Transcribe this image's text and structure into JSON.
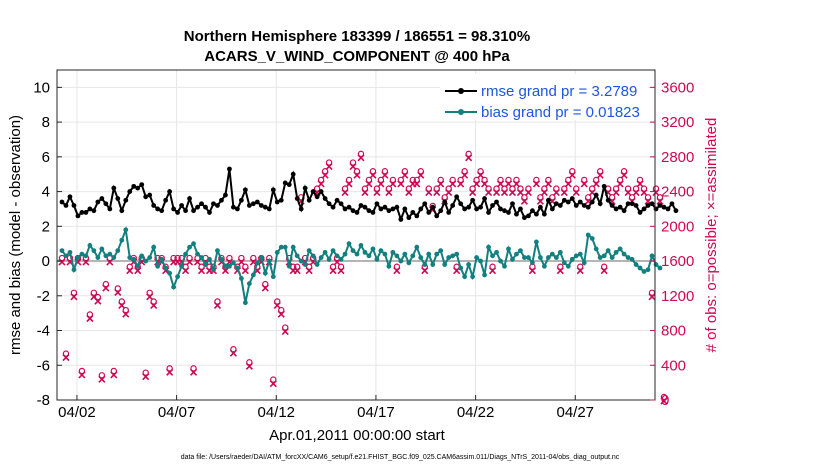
{
  "chart_data": {
    "type": "line",
    "title": "Northern Hemisphere 183399 / 186551 = 98.310%",
    "subtitle": "ACARS_V_WIND_COMPONENT @ 400 hPa",
    "xlabel": "Apr.01,2011 00:00:00 start",
    "ylabel": "rmse and bias (model - observation)",
    "ylabel_right": "# of obs: o=possible; ×=assimilated",
    "footer": "data file: /Users/raeder/DAI/ATM_forcXX/CAM6_setup/f.e21.FHIST_BGC.f09_025.CAM6assim.011/Diags_NTrS_2011-04/obs_diag_output.nc",
    "xlim": [
      1.0,
      31.0
    ],
    "ylim": [
      -8,
      11
    ],
    "ylim_right": [
      0,
      3800
    ],
    "grid": true,
    "legend_position": "top-right",
    "x_ticks": [
      {
        "value": 2,
        "label": "04/02"
      },
      {
        "value": 7,
        "label": "04/07"
      },
      {
        "value": 12,
        "label": "04/12"
      },
      {
        "value": 17,
        "label": "04/17"
      },
      {
        "value": 22,
        "label": "04/22"
      },
      {
        "value": 27,
        "label": "04/27"
      }
    ],
    "y_ticks": [
      -8,
      -6,
      -4,
      -2,
      0,
      2,
      4,
      6,
      8,
      10
    ],
    "y_ticks_right": [
      0,
      400,
      800,
      1200,
      1600,
      2000,
      2400,
      2800,
      3200,
      3600
    ],
    "colors": {
      "rmse": "#000000",
      "bias": "#138080",
      "obs": "#cc0a55",
      "zero": "#b4b4b4"
    },
    "series": [
      {
        "name": "rmse grand pr = 3.2789",
        "axis": "left",
        "color": "#000000",
        "values": [
          3.4,
          3.2,
          3.7,
          3.2,
          2.6,
          2.8,
          2.8,
          3.0,
          2.9,
          3.4,
          3.6,
          3.3,
          3.0,
          4.2,
          3.6,
          2.9,
          3.5,
          4.0,
          4.3,
          4.2,
          4.4,
          3.7,
          3.8,
          3.2,
          3.0,
          2.9,
          3.5,
          4.0,
          3.0,
          2.8,
          3.2,
          2.9,
          3.6,
          2.9,
          3.1,
          3.3,
          3.1,
          2.8,
          3.3,
          3.2,
          3.5,
          3.8,
          5.3,
          3.1,
          3.0,
          3.5,
          4.1,
          3.2,
          3.3,
          3.4,
          3.2,
          3.1,
          3.0,
          4.1,
          3.4,
          3.5,
          4.5,
          4.4,
          5.0,
          3.6,
          3.0,
          4.2,
          3.5,
          4.0,
          3.7,
          4.0,
          3.6,
          3.3,
          3.1,
          3.5,
          3.3,
          3.0,
          3.1,
          2.9,
          2.8,
          3.2,
          3.1,
          2.9,
          2.8,
          3.3,
          3.0,
          3.1,
          2.9,
          3.0,
          3.1,
          2.4,
          3.0,
          2.5,
          2.8,
          2.6,
          3.0,
          3.3,
          2.8,
          3.1,
          2.6,
          2.9,
          3.4,
          2.8,
          3.2,
          3.7,
          3.3,
          3.0,
          3.1,
          3.5,
          3.0,
          3.1,
          3.6,
          2.8,
          3.2,
          3.4,
          3.0,
          2.9,
          2.8,
          3.3,
          2.7,
          3.0,
          2.5,
          2.6,
          2.9,
          2.7,
          3.1,
          2.7,
          3.5,
          3.0,
          3.3,
          3.2,
          3.5,
          3.4,
          3.6,
          3.2,
          3.4,
          3.2,
          3.1,
          3.4,
          3.8,
          3.3,
          4.3,
          3.5,
          3.2,
          3.0,
          3.1,
          2.9,
          3.3,
          3.3,
          3.2,
          2.8,
          3.0,
          3.2,
          3.3,
          3.0,
          3.2,
          3.1,
          3.0,
          3.3,
          2.9
        ]
      },
      {
        "name": "bias grand pr = 0.01823",
        "axis": "left",
        "color": "#138080",
        "values": [
          0.6,
          0.3,
          0.5,
          -0.5,
          0.2,
          0.4,
          0.3,
          0.9,
          0.6,
          0.2,
          0.7,
          0.3,
          0.4,
          0.2,
          0.6,
          1.2,
          1.8,
          0.2,
          0.1,
          -0.3,
          0.3,
          0.0,
          0.2,
          0.8,
          -0.3,
          0.1,
          -0.4,
          -0.7,
          -1.5,
          -0.9,
          -0.3,
          0.4,
          0.8,
          1.0,
          0.4,
          0.2,
          -0.2,
          0.1,
          -0.5,
          0.6,
          0.1,
          -0.3,
          -0.3,
          -0.1,
          -0.4,
          -1.0,
          -2.4,
          -1.3,
          -0.8,
          -0.1,
          0.2,
          -0.7,
          0.0,
          -0.9,
          0.5,
          0.8,
          0.8,
          -0.3,
          0.8,
          0.3,
          0.0,
          -0.2,
          0.6,
          0.3,
          -0.2,
          0.2,
          0.5,
          0.1,
          0.6,
          0.3,
          0.1,
          0.4,
          1.0,
          0.6,
          0.4,
          0.9,
          0.5,
          0.3,
          0.7,
          0.1,
          0.6,
          0.4,
          -0.3,
          0.5,
          0.3,
          0.0,
          0.4,
          -0.1,
          0.3,
          0.8,
          0.2,
          -0.2,
          0.4,
          -0.2,
          0.4,
          0.6,
          -0.2,
          0.2,
          0.3,
          0.4,
          -0.4,
          -0.9,
          -0.2,
          -0.9,
          0.2,
          0.0,
          -0.8,
          0.8,
          0.3,
          0.5,
          0.0,
          -0.3,
          0.7,
          0.1,
          0.4,
          0.6,
          0.2,
          0.2,
          -0.1,
          1.1,
          0.2,
          -0.3,
          0.2,
          0.4,
          0.2,
          0.5,
          -0.1,
          -0.3,
          0.1,
          0.3,
          0.4,
          -0.1,
          1.5,
          1.3,
          0.7,
          0.2,
          0.3,
          0.6,
          0.2,
          0.5,
          0.7,
          0.4,
          0.2,
          0.1,
          -0.2,
          -0.4,
          -0.6,
          -0.5,
          0.3,
          -0.2,
          -0.4
        ]
      },
      {
        "name": "observations possible / assimilated",
        "axis": "right",
        "color": "#cc0a55",
        "values": [
          1600,
          500,
          1600,
          1200,
          1600,
          300,
          1600,
          950,
          1200,
          1150,
          250,
          1300,
          1600,
          300,
          1250,
          1100,
          1000,
          1500,
          1600,
          1500,
          1600,
          280,
          1200,
          1100,
          1600,
          1600,
          1500,
          330,
          1600,
          1600,
          1600,
          1500,
          1600,
          330,
          1600,
          1500,
          1600,
          1500,
          1500,
          1100,
          1600,
          1500,
          1600,
          550,
          1500,
          1600,
          1500,
          400,
          1600,
          1500,
          1600,
          1300,
          1600,
          200,
          1100,
          1000,
          800,
          1600,
          1500,
          1500,
          2300,
          1600,
          1500,
          1600,
          2400,
          2500,
          2600,
          2700,
          1500,
          1600,
          1500,
          2400,
          2500,
          2700,
          2600,
          2800,
          2400,
          2500,
          2600,
          2400,
          2500,
          2600,
          2400,
          2500,
          1500,
          2500,
          2600,
          2400,
          2500,
          2500,
          2600,
          1500,
          2400,
          2200,
          2400,
          2500,
          2300,
          2400,
          2500,
          1500,
          2500,
          2600,
          2800,
          2400,
          2500,
          2600,
          2500,
          2400,
          1500,
          2400,
          2500,
          2400,
          2500,
          2400,
          2500,
          2400,
          2300,
          2400,
          1500,
          2500,
          2300,
          2400,
          2500,
          2300,
          2400,
          1500,
          2400,
          2500,
          2600,
          2400,
          1500,
          2500,
          2300,
          2400,
          2500,
          2600,
          1500,
          2400,
          2300,
          2400,
          2500,
          2600,
          2400,
          2300,
          2400,
          2500,
          2400,
          2300,
          1200,
          2400,
          2300,
          0
        ]
      }
    ]
  }
}
